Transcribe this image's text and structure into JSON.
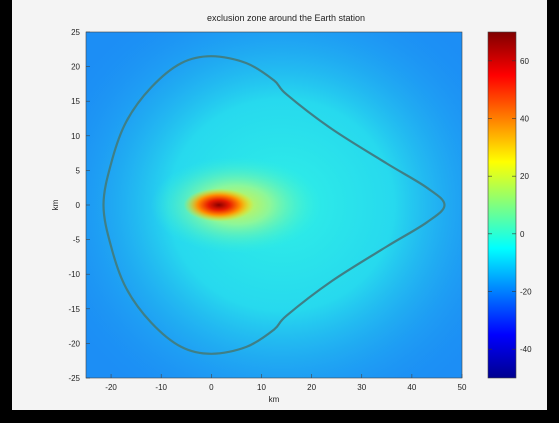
{
  "chart_data": {
    "type": "heatmap",
    "title": "exclusion zone around the Earth station",
    "xlabel": "km",
    "ylabel": "km",
    "xlim": [
      -25,
      50
    ],
    "ylim": [
      -25,
      25
    ],
    "x_ticks": [
      -20,
      -10,
      0,
      10,
      20,
      30,
      40,
      50
    ],
    "y_ticks": [
      25,
      20,
      15,
      10,
      5,
      0,
      -5,
      -10,
      -15,
      -20,
      -25
    ],
    "x_tick_labels": [
      "-20",
      "-10",
      "0",
      "10",
      "20",
      "30",
      "40",
      "50"
    ],
    "y_tick_labels": [
      "25",
      "20",
      "15",
      "10",
      "5",
      "0",
      "-5",
      "-10",
      "-15",
      "-20",
      "-25"
    ],
    "colorbar": {
      "colormap": "jet",
      "range": [
        -50,
        70
      ],
      "ticks": [
        60,
        40,
        20,
        0,
        -20,
        -40
      ],
      "tick_labels": [
        "60",
        "40",
        "20",
        "0",
        "-20",
        "-40"
      ]
    },
    "peak": {
      "x": 0,
      "y": 0
    },
    "contour_level": 0,
    "contour_path_km": [
      [
        0,
        21.5
      ],
      [
        -6,
        20.5
      ],
      [
        -12,
        17
      ],
      [
        -17,
        12
      ],
      [
        -20,
        6
      ],
      [
        -21.5,
        0
      ],
      [
        -20,
        -6
      ],
      [
        -17,
        -12
      ],
      [
        -12,
        -17
      ],
      [
        -6,
        -20.5
      ],
      [
        0,
        -21.5
      ],
      [
        7,
        -20.5
      ],
      [
        12.5,
        -18
      ],
      [
        15,
        -16
      ],
      [
        24,
        -11
      ],
      [
        35,
        -6
      ],
      [
        43,
        -2.5
      ],
      [
        46.5,
        0
      ],
      [
        43,
        2.5
      ],
      [
        35,
        6
      ],
      [
        24,
        11
      ],
      [
        15,
        16
      ],
      [
        12.5,
        18
      ],
      [
        7,
        20.5
      ]
    ],
    "colors": {
      "field_background": "#1c8ef5",
      "contour": "#3f7f86"
    }
  }
}
